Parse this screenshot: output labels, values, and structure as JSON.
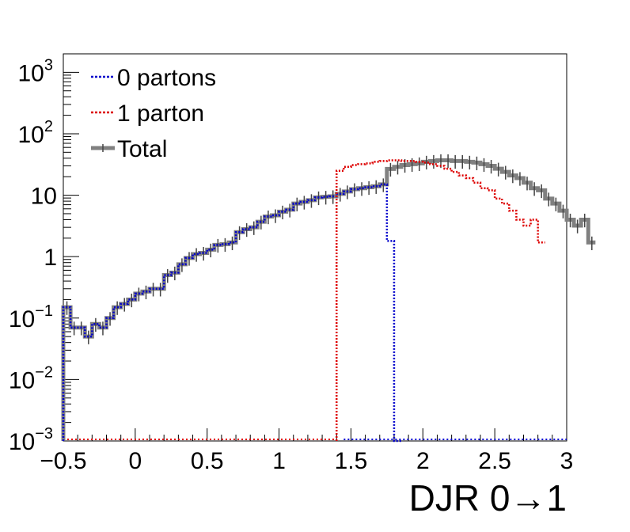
{
  "chart_data": {
    "type": "line",
    "style": "step-histogram",
    "xlabel": "DJR 0→1",
    "ylabel": "",
    "xlim": [
      -0.5,
      3.0
    ],
    "ylim": [
      0.001,
      2000
    ],
    "yscale": "log",
    "x_ticks": [
      "−0.5",
      "0",
      "0.5",
      "1",
      "1.5",
      "2",
      "2.5",
      "3"
    ],
    "y_ticks": [
      {
        "base": "10",
        "exp": "−3"
      },
      {
        "base": "10",
        "exp": "−2"
      },
      {
        "base": "10",
        "exp": "−1"
      },
      {
        "base": "1",
        "exp": ""
      },
      {
        "base": "10",
        "exp": ""
      },
      {
        "base": "10",
        "exp": "2"
      },
      {
        "base": "10",
        "exp": "3"
      }
    ],
    "legend": {
      "position": "top-left",
      "entries": [
        "0 partons",
        "1 parton",
        "Total"
      ]
    },
    "bin_width": 0.05,
    "series": [
      {
        "name": "0 partons",
        "color": "#0000cc",
        "linestyle": "dotted",
        "x_start": -0.5,
        "values": [
          0.15,
          0.07,
          0.07,
          0.05,
          0.08,
          0.07,
          0.1,
          0.15,
          0.17,
          0.2,
          0.25,
          0.27,
          0.3,
          0.3,
          0.5,
          0.55,
          0.75,
          0.95,
          1.1,
          1.15,
          1.3,
          1.55,
          1.6,
          1.7,
          2.5,
          2.8,
          3.0,
          3.7,
          4.5,
          4.7,
          5.4,
          5.8,
          7.3,
          7.8,
          8.3,
          9.2,
          9.4,
          9.6,
          10.5,
          11.5,
          12.5,
          13,
          13.5,
          14,
          15,
          1.8,
          0.001
        ]
      },
      {
        "name": "1 parton",
        "color": "#dd0000",
        "linestyle": "dotted",
        "x_start": 1.4,
        "values": [
          0.001,
          0.001,
          0.001,
          0.001,
          0.001,
          0.001,
          0.001,
          0.001,
          0.001,
          0.001,
          0.001,
          0.001,
          0.001,
          0.001,
          0.001,
          0.001,
          0.001,
          0.001,
          0.001,
          0.001,
          0.001,
          0.001,
          0.001,
          0.001,
          0.001,
          0.001,
          0.001,
          0.001,
          0.001,
          0.001,
          0.001,
          0.001,
          0.001,
          0.001,
          0.001,
          0.001,
          0.001,
          0.001,
          0.001,
          0.001,
          0.001,
          0.001,
          0.001,
          0.001,
          0.001,
          0.001,
          0.001,
          0.001,
          0.001,
          0.001,
          0.001,
          0.001,
          0.001,
          0.001,
          0.001,
          0.001,
          0.001,
          0.001,
          0.001,
          0.001
        ],
        "values_from_1p4": [
          25,
          29,
          31,
          32,
          33,
          35,
          36,
          37,
          37,
          36,
          36,
          35,
          34,
          32,
          30,
          27,
          24,
          21,
          19,
          16,
          13,
          12,
          8.8,
          7.3,
          5.6,
          4.0,
          3.2,
          4.0,
          1.7
        ]
      },
      {
        "name": "Total",
        "color": "#808080",
        "linestyle": "solid",
        "x_start": -0.5,
        "values": [
          0.15,
          0.07,
          0.07,
          0.05,
          0.08,
          0.07,
          0.1,
          0.15,
          0.17,
          0.2,
          0.25,
          0.27,
          0.3,
          0.3,
          0.5,
          0.55,
          0.75,
          0.95,
          1.1,
          1.15,
          1.3,
          1.55,
          1.6,
          1.7,
          2.5,
          2.8,
          3.0,
          3.7,
          4.5,
          4.7,
          5.4,
          5.8,
          7.3,
          7.8,
          8.3,
          9.2,
          9.4,
          9.6,
          10.5,
          11.5,
          12.5,
          13,
          13.5,
          14,
          15,
          26.8,
          29,
          31,
          32,
          33,
          35,
          36,
          37,
          37,
          36,
          36,
          35,
          34,
          32,
          30,
          27,
          24,
          21,
          19,
          16,
          13,
          12,
          8.8,
          7.3,
          5.6,
          4.0,
          3.2,
          4.0,
          1.7
        ]
      }
    ]
  }
}
